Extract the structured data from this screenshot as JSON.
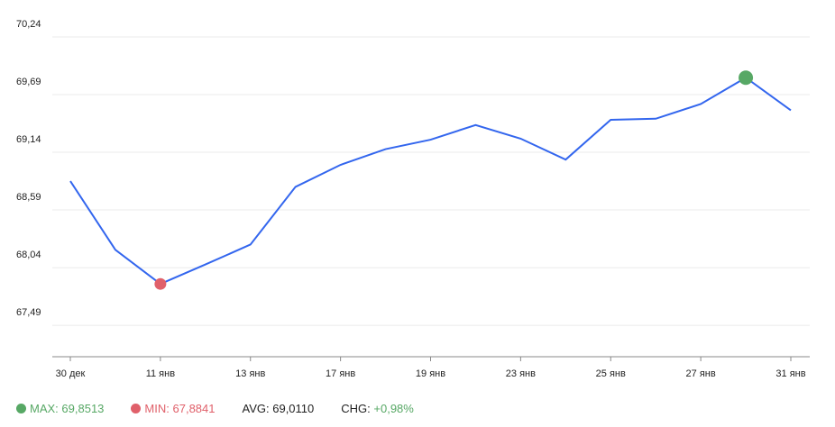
{
  "chart_data": {
    "type": "line",
    "categories": [
      "30 дек",
      null,
      "11 янв",
      null,
      "13 янв",
      null,
      "17 янв",
      null,
      "19 янв",
      null,
      "23 янв",
      null,
      "25 янв",
      null,
      "27 янв",
      null,
      "31 янв"
    ],
    "series": [
      {
        "color": "#3366ee",
        "values": [
          68.865,
          68.21,
          67.8841,
          68.07,
          68.26,
          68.81,
          69.02,
          69.17,
          69.26,
          69.4,
          69.27,
          69.07,
          69.45,
          69.46,
          69.6,
          69.8513,
          69.54
        ]
      }
    ],
    "ylim": [
      67.19,
      70.24
    ],
    "yticks": [
      {
        "value": 67.49,
        "label": "67,49"
      },
      {
        "value": 68.04,
        "label": "68,04"
      },
      {
        "value": 68.59,
        "label": "68,59"
      },
      {
        "value": 69.14,
        "label": "69,14"
      },
      {
        "value": 69.69,
        "label": "69,69"
      },
      {
        "value": 70.24,
        "label": "70,24"
      }
    ],
    "grid": true,
    "max_color": "#57a865",
    "min_color": "#e0606a",
    "stats": [
      {
        "label": "MAX:",
        "value": "69,8513"
      },
      {
        "label": "MIN:",
        "value": "67,8841"
      },
      {
        "label": "AVG:",
        "value": "69,0110"
      },
      {
        "label": "CHG:",
        "value": "+0,98%"
      }
    ]
  }
}
